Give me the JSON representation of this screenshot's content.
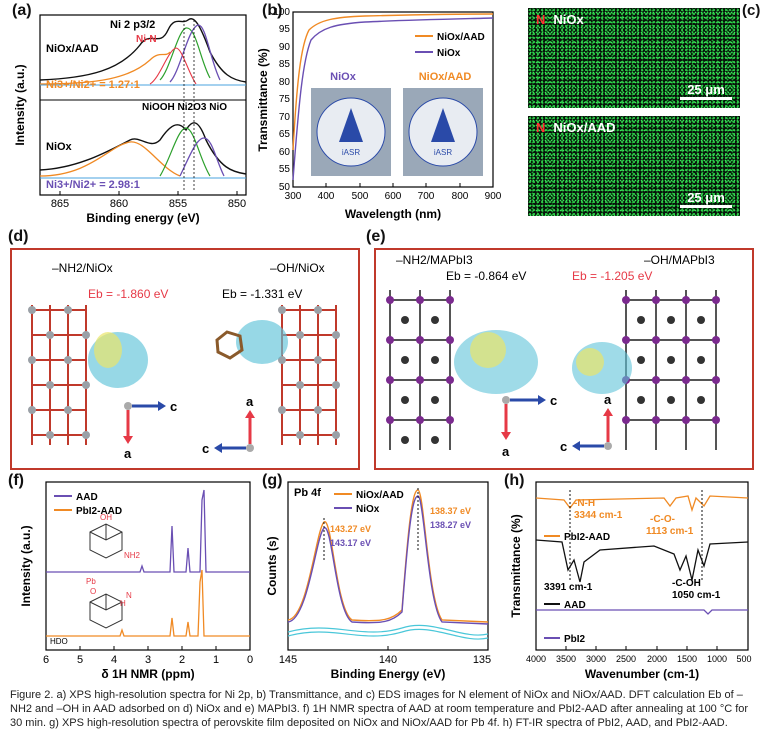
{
  "panels": {
    "a": {
      "label": "(a)",
      "title": "Ni 2 p3/2",
      "peak_NiN": "Ni-N",
      "sample_top": "NiOx/AAD",
      "ratio_top": "Ni3+/Ni2+ = 1.27:1",
      "sample_bottom": "NiOx",
      "ratio_bottom": "Ni3+/Ni2+ = 2.98:1",
      "peaks_mid": "NiOOH   Ni2O3  NiO",
      "ylabel": "Intensity (a.u.)",
      "xlabel": "Binding energy (eV)",
      "xticks": [
        "865",
        "860",
        "855",
        "850"
      ]
    },
    "b": {
      "label": "(b)",
      "ylabel": "Transmittance (%)",
      "xlabel": "Wavelength (nm)",
      "legend": [
        "NiOx/AAD",
        "NiOx"
      ],
      "photo_left": "NiOx",
      "photo_right": "NiOx/AAD",
      "logo_text": "iASR",
      "xticks": [
        "300",
        "400",
        "500",
        "600",
        "700",
        "800",
        "900"
      ],
      "yticks": [
        "50",
        "55",
        "60",
        "65",
        "70",
        "75",
        "80",
        "85",
        "90",
        "95",
        "100"
      ]
    },
    "c": {
      "label": "(c)",
      "top_element": "N",
      "top_title": "NiOx",
      "bottom_element": "N",
      "bottom_title": "NiOx/AAD",
      "scale": "25 μm"
    },
    "d": {
      "label": "(d)",
      "left_title": "–NH2/NiOx",
      "left_eb": "Eb = -1.860 eV",
      "right_title": "–OH/NiOx",
      "right_eb": "Eb = -1.331 eV",
      "axis_c": "c",
      "axis_a": "a"
    },
    "e": {
      "label": "(e)",
      "left_title": "–NH2/MAPbI3",
      "left_eb": "Eb = -0.864 eV",
      "right_title": "–OH/MAPbI3",
      "right_eb": "Eb = -1.205 eV",
      "axis_c": "c",
      "axis_a": "a"
    },
    "f": {
      "label": "(f)",
      "legend": [
        "AAD",
        "PbI2-AAD"
      ],
      "ylabel": "Intensity (a.u.)",
      "xlabel": "δ 1H NMR (ppm)",
      "xticks": [
        "6",
        "5",
        "4",
        "3",
        "2",
        "1",
        "0"
      ],
      "mol_top": [
        "OH",
        "NH2"
      ],
      "mol_bottom": [
        "Pb",
        "O",
        "N",
        "H",
        "HDO"
      ]
    },
    "g": {
      "label": "(g)",
      "title": "Pb 4f",
      "legend": [
        "NiOx/AAD",
        "NiOx"
      ],
      "ylabel": "Counts (s)",
      "xlabel": "Binding Energy (eV)",
      "xticks": [
        "145",
        "140",
        "135"
      ],
      "val_orange_left": "143.27 eV",
      "val_purple_left": "143.17 eV",
      "val_orange_right": "138.37 eV",
      "val_purple_right": "138.27 eV"
    },
    "h": {
      "label": "(h)",
      "ylabel": "Transmittance (%)",
      "xlabel": "Wavenumber (cm-1)",
      "xticks": [
        "4000",
        "3500",
        "3000",
        "2500",
        "2000",
        "1500",
        "1000",
        "500"
      ],
      "nh_label": "-N-H",
      "nh_value": "3344 cm-1",
      "co_label": "-C-O-",
      "co_value": "1113 cm-1",
      "sample_pbi2aad": "PbI2-AAD",
      "oh_value": "3391 cm-1",
      "coh_label": "-C-OH",
      "coh_value": "1050 cm-1",
      "sample_aad": "AAD",
      "sample_pbi2": "PbI2"
    }
  },
  "colors": {
    "orange": "#f08a24",
    "purple": "#6a4fb3",
    "black": "#111111",
    "red": "#c0392b",
    "green": "#33c44a",
    "blue": "#2a4aa8"
  },
  "caption": "Figure 2.  a) XPS high-resolution spectra for Ni 2p, b) Transmittance, and c) EDS images for N element of NiOx and NiOx/AAD. DFT calculation Eb of –NH2 and –OH in AAD adsorbed on d) NiOx and e) MAPbI3. f) 1H NMR spectra of AAD at room temperature and PbI2-AAD after annealing at 100 °C for 30 min. g) XPS high-resolution spectra of perovskite film deposited on NiOx and NiOx/AAD for Pb 4f. h) FT-IR spectra of PbI2, AAD, and PbI2-AAD."
}
